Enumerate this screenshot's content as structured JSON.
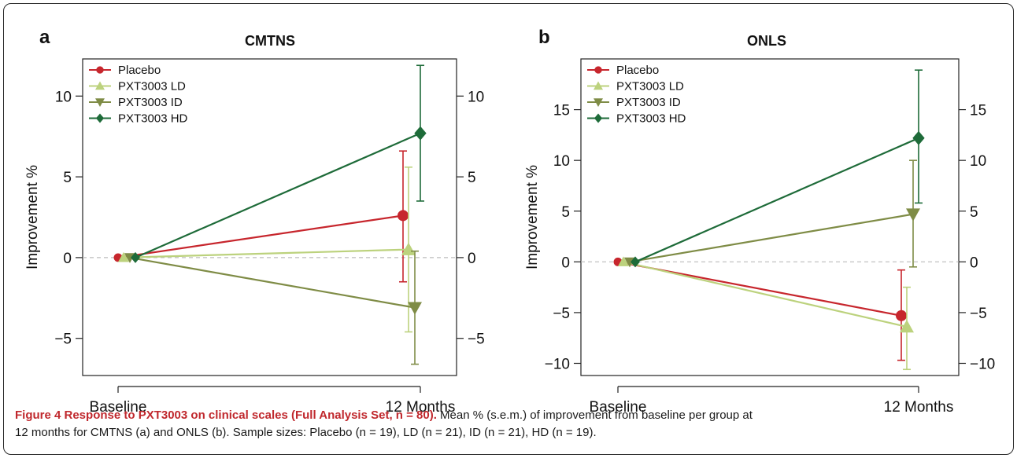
{
  "chart_data": [
    {
      "type": "line",
      "panel_label": "a",
      "title": "CMTNS",
      "ylabel": "Improvement %",
      "categories": [
        "Baseline",
        "12 Months"
      ],
      "ylim": [
        -7.3,
        12.3
      ],
      "yticks": [
        -5,
        0,
        5,
        10
      ],
      "ytick_labels": [
        "−5",
        "0",
        "5",
        "10"
      ],
      "reference_line": 0,
      "legend_position": "top-left",
      "series": [
        {
          "name": "Placebo",
          "values": [
            0,
            2.6
          ],
          "error": [
            null,
            [
              -1.5,
              6.6
            ]
          ],
          "color": "#c7262d",
          "marker": "circle"
        },
        {
          "name": "PXT3003 LD",
          "values": [
            0,
            0.5
          ],
          "error": [
            null,
            [
              -4.6,
              5.6
            ]
          ],
          "color": "#bcd27d",
          "marker": "triangle-up"
        },
        {
          "name": "PXT3003 ID",
          "values": [
            0,
            -3.1
          ],
          "error": [
            null,
            [
              -6.6,
              0.4
            ]
          ],
          "color": "#7f8c46",
          "marker": "triangle-down"
        },
        {
          "name": "PXT3003 HD",
          "values": [
            0,
            7.7
          ],
          "error": [
            null,
            [
              3.5,
              11.9
            ]
          ],
          "color": "#1e6b39",
          "marker": "diamond"
        }
      ]
    },
    {
      "type": "line",
      "panel_label": "b",
      "title": "ONLS",
      "ylabel": "Improvement %",
      "categories": [
        "Baseline",
        "12 Months"
      ],
      "ylim": [
        -11.2,
        20
      ],
      "yticks": [
        -10,
        -5,
        0,
        5,
        10,
        15
      ],
      "ytick_labels": [
        "−10",
        "−5",
        "0",
        "5",
        "10",
        "15"
      ],
      "reference_line": 0,
      "legend_position": "top-left",
      "series": [
        {
          "name": "Placebo",
          "values": [
            0,
            -5.3
          ],
          "error": [
            null,
            [
              -9.7,
              -0.8
            ]
          ],
          "color": "#c7262d",
          "marker": "circle"
        },
        {
          "name": "PXT3003 LD",
          "values": [
            0,
            -6.4
          ],
          "error": [
            null,
            [
              -10.6,
              -2.5
            ]
          ],
          "color": "#bcd27d",
          "marker": "triangle-up"
        },
        {
          "name": "PXT3003 ID",
          "values": [
            0,
            4.7
          ],
          "error": [
            null,
            [
              -0.5,
              10.0
            ]
          ],
          "color": "#7f8c46",
          "marker": "triangle-down"
        },
        {
          "name": "PXT3003 HD",
          "values": [
            0,
            12.2
          ],
          "error": [
            null,
            [
              5.8,
              18.9
            ]
          ],
          "color": "#1e6b39",
          "marker": "diamond"
        }
      ]
    }
  ],
  "caption": {
    "title": "Figure 4 Response to PXT3003 on clinical scales (Full Analysis Set, n = 80).",
    "line1": " Mean % (s.e.m.) of improvement from baseline per group at",
    "line2": "12 months for CMTNS (a) and ONLS (b). Sample sizes: Placebo (n = 19), LD (n = 21), ID (n = 21), HD (n = 19)."
  }
}
